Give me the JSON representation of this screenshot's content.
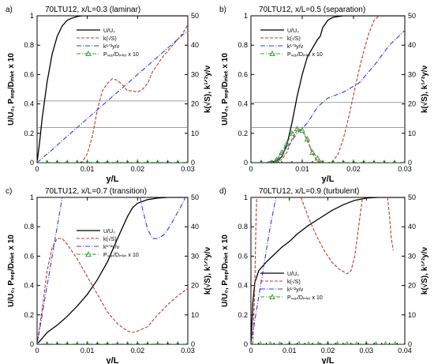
{
  "figure": {
    "background": "#ffffff"
  },
  "styles": {
    "colors": {
      "u": "#000000",
      "k": "#c0392b",
      "klen": "#3a3ad6",
      "psep": "#2ca02c",
      "hline": "#808080"
    },
    "legend_symbols": {
      "psep_marker": "triangle-up"
    }
  },
  "chart_data": [
    {
      "type": "line",
      "panel_label": "a)",
      "title": "70LTU12, x/L=0.3 (laminar)",
      "xlabel": "y/L",
      "ylabel_left": "U/U₀, Pₛₑₚ/Dᵢₙₗₑₜ x 10",
      "ylabel_right": "k(√S), k¹ᐟ²y/ν",
      "xlim": [
        0,
        0.03
      ],
      "xticks": [
        "0",
        "0.01",
        "0.02",
        "0.03"
      ],
      "ylim_left": [
        0,
        1
      ],
      "yticks_left": [
        "0",
        "0.2",
        "0.4",
        "0.6",
        "0.8",
        "1"
      ],
      "ylim_right": [
        0,
        50
      ],
      "yticks_right": [
        "0",
        "10",
        "20",
        "30",
        "40",
        "50"
      ],
      "hlines_left": [
        0.42,
        0.24
      ],
      "legend": [
        "U/U₀",
        "k(√S)",
        "k¹ᐟ²y/ν",
        "Pₛₑₚ/Dᵢₙₗₑₜ x 10"
      ],
      "series": [
        {
          "name": "U/U₀",
          "axis": "left",
          "style": "u",
          "x": [
            0,
            0.0005,
            0.001,
            0.002,
            0.003,
            0.004,
            0.005,
            0.006,
            0.007,
            0.008,
            0.009,
            0.01,
            0.012,
            0.015,
            0.02,
            0.025,
            0.03
          ],
          "y": [
            0,
            0.14,
            0.3,
            0.55,
            0.74,
            0.86,
            0.93,
            0.97,
            0.985,
            0.995,
            1.0,
            1.0,
            1.0,
            1.0,
            1.0,
            1.0,
            1.0
          ]
        },
        {
          "name": "k(√S)",
          "axis": "right",
          "style": "k",
          "x": [
            0,
            0.008,
            0.009,
            0.01,
            0.011,
            0.012,
            0.013,
            0.014,
            0.015,
            0.016,
            0.017,
            0.018,
            0.019,
            0.02,
            0.021,
            0.022,
            0.023,
            0.025,
            0.027,
            0.029,
            0.03
          ],
          "y": [
            0,
            0,
            0.3,
            3,
            9,
            18,
            24.5,
            27,
            28.6,
            28,
            26.5,
            24.5,
            24.5,
            24,
            25,
            27,
            31,
            36,
            40,
            44,
            47
          ]
        },
        {
          "name": "k¹ᐟ²y/ν",
          "axis": "right",
          "style": "klen",
          "x": [
            0,
            0.003,
            0.006,
            0.009,
            0.012,
            0.015,
            0.018,
            0.021,
            0.024,
            0.027,
            0.03
          ],
          "y": [
            0,
            4.4,
            9,
            13.5,
            18,
            22.5,
            27,
            31.5,
            36,
            40.5,
            45
          ]
        },
        {
          "name": "Pₛₑₚ/Dᵢₙₗₑₜ x 10",
          "axis": "left",
          "style": "psep",
          "x": [
            0,
            0.002,
            0.004,
            0.006,
            0.008,
            0.01,
            0.012,
            0.014,
            0.016,
            0.018,
            0.02,
            0.022,
            0.024,
            0.026,
            0.028,
            0.03
          ],
          "y": [
            0,
            0,
            0,
            0,
            0,
            0,
            0,
            0,
            0,
            0,
            0,
            0,
            0,
            0,
            0,
            0
          ]
        }
      ]
    },
    {
      "type": "line",
      "panel_label": "b)",
      "title": "70LTU12, x/L=0.5 (separation)",
      "xlabel": "y/L",
      "ylabel_left": "U/U₀, Pₛₑₚ/Dᵢₙₗₑₜ x 10",
      "ylabel_right": "k(√S), k¹ᐟ²y/ν",
      "xlim": [
        0,
        0.03
      ],
      "xticks": [
        "0",
        "0.01",
        "0.02",
        "0.03"
      ],
      "ylim_left": [
        0,
        1
      ],
      "yticks_left": [
        "0",
        "0.2",
        "0.4",
        "0.6",
        "0.8",
        "1"
      ],
      "ylim_right": [
        0,
        50
      ],
      "yticks_right": [
        "0",
        "10",
        "20",
        "30",
        "40",
        "50"
      ],
      "hlines_left": [
        0.41,
        0.24
      ],
      "legend": [
        "U/U₀",
        "k(√S)",
        "k¹ᐟ²y/ν",
        "Pₛₑₚ/Dᵢₙₗₑₜ x 10"
      ],
      "series": [
        {
          "name": "U/U₀",
          "axis": "left",
          "style": "u",
          "x": [
            0,
            0.003,
            0.005,
            0.006,
            0.007,
            0.008,
            0.009,
            0.01,
            0.011,
            0.012,
            0.013,
            0.0135,
            0.014,
            0.015,
            0.016,
            0.018,
            0.02,
            0.025,
            0.03
          ],
          "y": [
            0,
            0,
            0.01,
            0.04,
            0.12,
            0.27,
            0.45,
            0.6,
            0.72,
            0.78,
            0.84,
            0.86,
            0.92,
            0.97,
            0.99,
            1.0,
            1.0,
            1.0,
            1.0
          ]
        },
        {
          "name": "k(√S)",
          "axis": "right",
          "style": "k",
          "x": [
            0,
            0.004,
            0.006,
            0.007,
            0.008,
            0.009,
            0.01,
            0.011,
            0.012,
            0.013,
            0.014,
            0.015,
            0.016,
            0.017,
            0.018,
            0.019,
            0.02,
            0.021,
            0.022,
            0.023,
            0.024,
            0.025
          ],
          "y": [
            0,
            0,
            1,
            3.5,
            8,
            11,
            11,
            7.5,
            3,
            0.5,
            0,
            0,
            0.5,
            3,
            8,
            15,
            23,
            31,
            38,
            44,
            48.5,
            50
          ]
        },
        {
          "name": "k¹ᐟ²y/ν",
          "axis": "right",
          "style": "klen",
          "x": [
            0,
            0.003,
            0.005,
            0.007,
            0.009,
            0.011,
            0.013,
            0.015,
            0.018,
            0.021,
            0.024,
            0.027,
            0.03
          ],
          "y": [
            0,
            0,
            1,
            5,
            10,
            13.5,
            19,
            22,
            24,
            27,
            33,
            40,
            45
          ]
        },
        {
          "name": "Pₛₑₚ/Dᵢₙₗₑₜ x 10",
          "axis": "left",
          "style": "psep",
          "x": [
            0,
            0.002,
            0.004,
            0.005,
            0.006,
            0.007,
            0.008,
            0.009,
            0.01,
            0.011,
            0.012,
            0.013,
            0.014,
            0.016,
            0.018,
            0.02,
            0.022,
            0.024,
            0.026,
            0.028,
            0.03
          ],
          "y": [
            0,
            0,
            0,
            0.02,
            0.07,
            0.13,
            0.2,
            0.23,
            0.22,
            0.16,
            0.07,
            0.03,
            0,
            0,
            0,
            0,
            0,
            0,
            0,
            0,
            0
          ]
        }
      ]
    },
    {
      "type": "line",
      "panel_label": "c)",
      "title": "70LTU12, x/L=0.7 (transition)",
      "xlabel": "y/L",
      "ylabel_left": "U/U₀, Pₛₑₚ/Dᵢₙₗₑₜ x 10",
      "ylabel_right": "k(√S), k¹ᐟ²y/ν",
      "xlim": [
        0,
        0.03
      ],
      "xticks": [
        "0",
        "0.01",
        "0.02",
        "0.03"
      ],
      "ylim_left": [
        0,
        1
      ],
      "yticks_left": [
        "0",
        "0.2",
        "0.4",
        "0.6",
        "0.8",
        "1"
      ],
      "ylim_right": [
        0,
        50
      ],
      "yticks_right": [
        "0",
        "10",
        "20",
        "30",
        "40",
        "50"
      ],
      "hlines_left": [],
      "legend": [
        "U/U₀",
        "k(√S)",
        "k¹ᐟ²y/ν",
        "Pₛₑₚ/Dᵢₙₗₑₜ x 10"
      ],
      "series": [
        {
          "name": "U/U₀",
          "axis": "left",
          "style": "u",
          "x": [
            0,
            0.001,
            0.002,
            0.004,
            0.006,
            0.008,
            0.01,
            0.012,
            0.014,
            0.016,
            0.018,
            0.019,
            0.02,
            0.022,
            0.024,
            0.026,
            0.028,
            0.03
          ],
          "y": [
            0,
            0.04,
            0.08,
            0.13,
            0.19,
            0.26,
            0.34,
            0.44,
            0.56,
            0.72,
            0.87,
            0.93,
            0.96,
            0.985,
            0.995,
            1.0,
            1.0,
            1.0
          ]
        },
        {
          "name": "k(√S)",
          "axis": "right",
          "style": "k",
          "x": [
            0,
            0.001,
            0.002,
            0.003,
            0.004,
            0.005,
            0.006,
            0.008,
            0.01,
            0.012,
            0.014,
            0.016,
            0.018,
            0.019,
            0.02,
            0.022,
            0.024,
            0.026,
            0.028,
            0.03
          ],
          "y": [
            0,
            12,
            25,
            33,
            36,
            36,
            34,
            29,
            23,
            17,
            11,
            7,
            4.5,
            4,
            4.5,
            6,
            10,
            13.5,
            16.5,
            19
          ]
        },
        {
          "name": "k¹ᐟ²y/ν",
          "axis": "right",
          "style": "klen",
          "x": [
            0,
            0.001,
            0.002,
            0.003,
            0.004,
            0.005
          ],
          "y": [
            0,
            10,
            20,
            30,
            40,
            50
          ]
        },
        {
          "name": "k¹ᐟ²y/ν (outer)",
          "axis": "right",
          "style": "klen",
          "x": [
            0.0205,
            0.021,
            0.022,
            0.023,
            0.024,
            0.025,
            0.026,
            0.027,
            0.028,
            0.029,
            0.0295
          ],
          "y": [
            50,
            46,
            39,
            36,
            36,
            37,
            39,
            42,
            45,
            48,
            50
          ]
        },
        {
          "name": "Pₛₑₚ/Dᵢₙₗₑₜ x 10",
          "axis": "left",
          "style": "psep",
          "x": [
            0,
            0.002,
            0.004,
            0.006,
            0.008,
            0.01,
            0.012,
            0.014,
            0.016,
            0.018,
            0.02,
            0.022,
            0.024,
            0.026,
            0.028,
            0.03
          ],
          "y": [
            0,
            0,
            0,
            0,
            0,
            0,
            0,
            0,
            0,
            0,
            0,
            0,
            0,
            0,
            0,
            0
          ]
        }
      ]
    },
    {
      "type": "line",
      "panel_label": "d)",
      "title": "70LTU12, x/L=0.9 (turbulent)",
      "xlabel": "y/L",
      "ylabel_left": "U/U₀, Pₛₑₚ/Dᵢₙₗₑₜ x 10",
      "ylabel_right": "k(√S), k¹ᐟ²y/ν",
      "xlim": [
        0,
        0.04
      ],
      "xticks": [
        "0",
        "0.01",
        "0.02",
        "0.03",
        "0.04"
      ],
      "ylim_left": [
        0,
        1
      ],
      "yticks_left": [
        "0",
        "0.2",
        "0.4",
        "0.6",
        "0.8",
        "1"
      ],
      "ylim_right": [
        0,
        50
      ],
      "yticks_right": [
        "0",
        "10",
        "20",
        "30",
        "40",
        "50"
      ],
      "hlines_left": [],
      "legend": [
        "U/U₀",
        "k(√S)",
        "k¹ᐟ²y/ν",
        "Pₛₑₚ/Dᵢₙₗₑₜ x 10"
      ],
      "series": [
        {
          "name": "U/U₀",
          "axis": "left",
          "style": "u",
          "x": [
            0,
            0.0005,
            0.001,
            0.002,
            0.004,
            0.006,
            0.008,
            0.01,
            0.012,
            0.015,
            0.018,
            0.021,
            0.024,
            0.027,
            0.03,
            0.033,
            0.036,
            0.04
          ],
          "y": [
            0,
            0.28,
            0.42,
            0.5,
            0.56,
            0.61,
            0.66,
            0.7,
            0.75,
            0.81,
            0.86,
            0.91,
            0.95,
            0.98,
            0.995,
            1.0,
            1.0,
            1.0
          ]
        },
        {
          "name": "k(√S)",
          "axis": "right",
          "style": "k",
          "x": [
            0.0005,
            0.001,
            0.0013,
            0.0015
          ],
          "y": [
            0,
            20,
            40,
            50
          ]
        },
        {
          "name": "k(√S) (outer)",
          "axis": "right",
          "style": "k",
          "x": [
            0.013,
            0.015,
            0.017,
            0.019,
            0.021,
            0.023,
            0.025,
            0.026,
            0.027,
            0.028,
            0.029
          ],
          "y": [
            50,
            43,
            37,
            32,
            28,
            25.5,
            24,
            25,
            30,
            40,
            50
          ]
        },
        {
          "name": "k(√S) (edge)",
          "axis": "right",
          "style": "k",
          "x": [
            0.0355,
            0.036,
            0.0365,
            0.037
          ],
          "y": [
            50,
            44,
            36,
            32
          ]
        },
        {
          "name": "k¹ᐟ²y/ν",
          "axis": "right",
          "style": "klen",
          "x": [
            0,
            0.0025,
            0.005,
            0.0065
          ],
          "y": [
            0,
            20,
            40,
            50
          ]
        },
        {
          "name": "Pₛₑₚ/Dᵢₙₗₑₜ x 10",
          "axis": "left",
          "style": "psep",
          "x": [
            0,
            0.0025,
            0.005,
            0.0075,
            0.01,
            0.0125,
            0.015,
            0.0175,
            0.02,
            0.0225,
            0.025,
            0.0275,
            0.03,
            0.0325,
            0.035,
            0.0375,
            0.04
          ],
          "y": [
            0,
            0,
            0,
            0,
            0,
            0,
            0,
            0,
            0,
            0,
            0,
            0,
            0,
            0,
            0,
            0,
            0
          ]
        }
      ]
    }
  ]
}
